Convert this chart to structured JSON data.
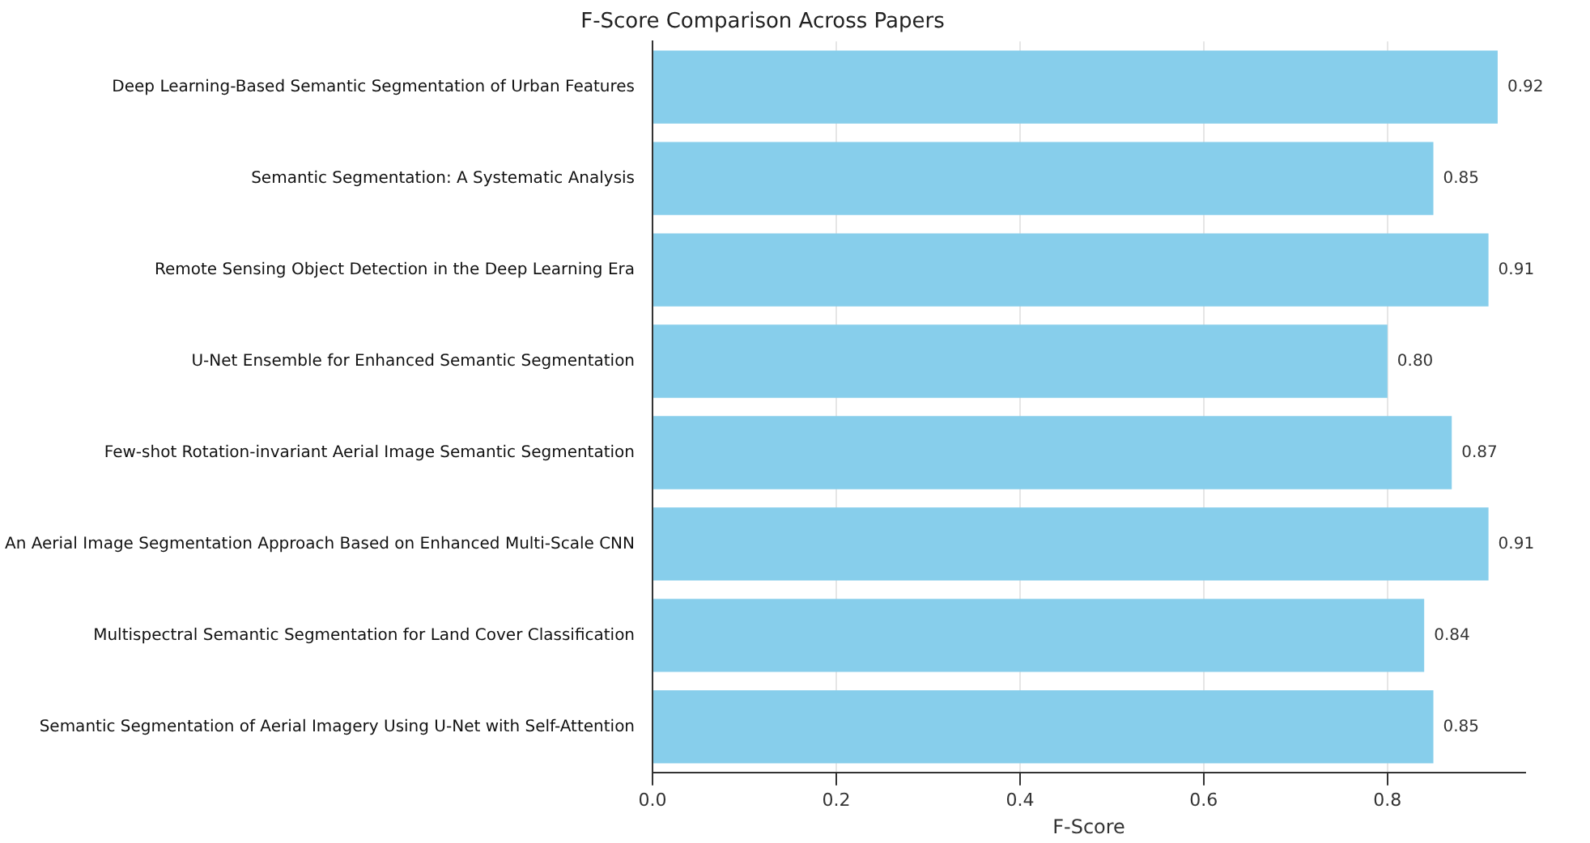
{
  "chart_data": {
    "type": "bar",
    "orientation": "horizontal",
    "title": "F-Score Comparison Across Papers",
    "xlabel": "F-Score",
    "categories": [
      "Deep Learning-Based Semantic Segmentation of Urban Features",
      "Semantic Segmentation: A Systematic Analysis",
      "Remote Sensing Object Detection in the Deep Learning Era",
      "U-Net Ensemble for Enhanced Semantic Segmentation",
      "Few-shot Rotation-invariant Aerial Image Semantic Segmentation",
      "An Aerial Image Segmentation Approach Based on Enhanced Multi-Scale CNN",
      "Multispectral Semantic Segmentation for Land Cover Classification",
      "Semantic Segmentation of Aerial Imagery Using U-Net with Self-Attention"
    ],
    "values": [
      0.92,
      0.85,
      0.91,
      0.8,
      0.87,
      0.91,
      0.84,
      0.85
    ],
    "color": "#87ceeb",
    "xlim": [
      0,
      0.95
    ],
    "xticks": [
      {
        "value": 0,
        "label": "0.0"
      },
      0.2,
      0.4,
      0.6,
      0.8
    ],
    "grid": "x",
    "value_labels": [
      "0.92",
      "0.85",
      "0.91",
      "0.80",
      "0.87",
      "0.91",
      "0.84",
      "0.85"
    ]
  }
}
